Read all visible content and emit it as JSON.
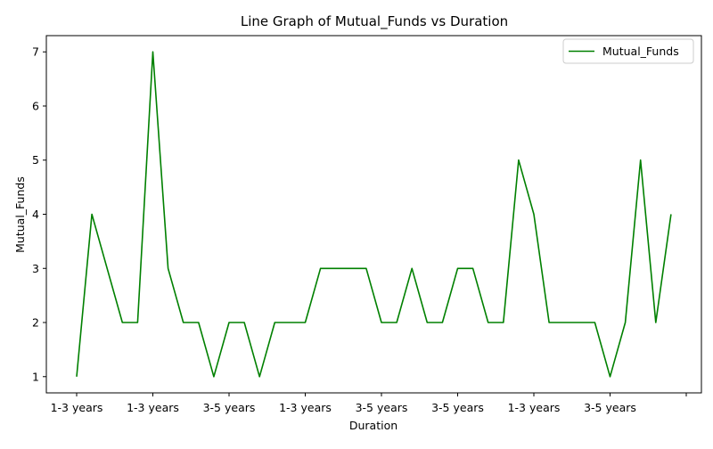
{
  "chart_data": {
    "type": "line",
    "title": "Line Graph of Mutual_Funds vs Duration",
    "xlabel": "Duration",
    "ylabel": "Mutual_Funds",
    "x_tick_labels": [
      "1-3 years",
      "1-3 years",
      "3-5 years",
      "1-3 years",
      "3-5 years",
      "3-5 years",
      "1-3 years",
      "3-5 years",
      ""
    ],
    "x_tick_every": 5,
    "y_ticks": [
      1,
      2,
      3,
      4,
      5,
      6,
      7
    ],
    "ylim": [
      0.7,
      7.3
    ],
    "grid": false,
    "legend_position": "top-right",
    "series": [
      {
        "name": "Mutual_Funds",
        "color": "#008000",
        "values": [
          1,
          4,
          3,
          2,
          2,
          7,
          3,
          2,
          2,
          1,
          2,
          2,
          1,
          2,
          2,
          2,
          3,
          3,
          3,
          3,
          2,
          2,
          3,
          2,
          2,
          3,
          3,
          2,
          2,
          5,
          4,
          2,
          2,
          2,
          2,
          1,
          2,
          5,
          2,
          4
        ]
      }
    ]
  }
}
